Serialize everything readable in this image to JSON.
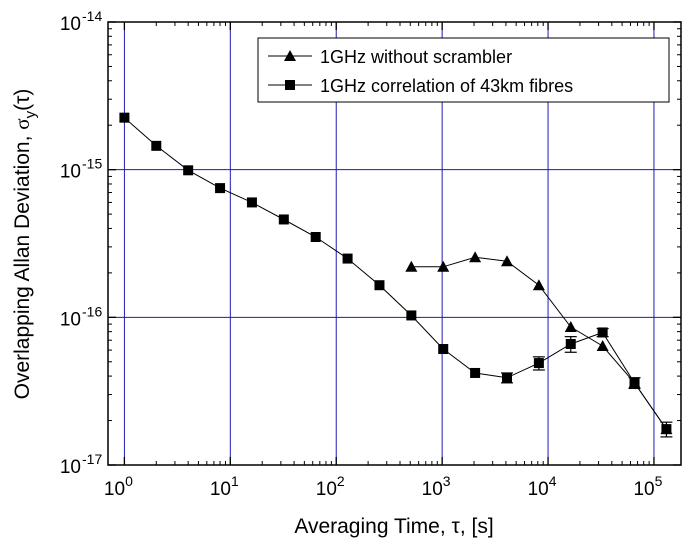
{
  "chart_data": {
    "type": "scatter",
    "x_scale": "log",
    "y_scale": "log",
    "xlim": [
      0.7,
      180000
    ],
    "ylim": [
      1e-17,
      1e-14
    ],
    "grid": true,
    "legend_placement": "top-right",
    "xlabel": "Averaging Time, τ, [s]",
    "ylabel_parts": {
      "main": "Overlapping Allan Deviation, ",
      "sigma": "σ",
      "sub": "y",
      "arg": "(τ)"
    },
    "x_ticks": [
      {
        "value": 1,
        "exponent": "0"
      },
      {
        "value": 10,
        "exponent": "1"
      },
      {
        "value": 100,
        "exponent": "2"
      },
      {
        "value": 1000,
        "exponent": "3"
      },
      {
        "value": 10000,
        "exponent": "4"
      },
      {
        "value": 100000,
        "exponent": "5"
      }
    ],
    "y_ticks": [
      {
        "value": 1e-17,
        "exponent": "-17"
      },
      {
        "value": 1e-16,
        "exponent": "-16"
      },
      {
        "value": 1e-15,
        "exponent": "-15"
      },
      {
        "value": 1e-14,
        "exponent": "-14"
      }
    ],
    "tick_base": "10",
    "series": [
      {
        "name": "1GHz without scrambler",
        "marker": "triangle",
        "color": "#000000",
        "points": [
          {
            "x": 512,
            "y": 2.2e-16
          },
          {
            "x": 1024,
            "y": 2.2e-16
          },
          {
            "x": 2048,
            "y": 2.55e-16
          },
          {
            "x": 4096,
            "y": 2.4e-16
          },
          {
            "x": 8192,
            "y": 1.65e-16
          },
          {
            "x": 16384,
            "y": 8.6e-17
          },
          {
            "x": 32768,
            "y": 6.4e-17
          },
          {
            "x": 65536,
            "y": 3.6e-17
          },
          {
            "x": 131072,
            "y": 1.75e-17
          }
        ]
      },
      {
        "name": "1GHz correlation of 43km fibres",
        "marker": "square",
        "color": "#000000",
        "points": [
          {
            "x": 1,
            "y": 2.25e-15
          },
          {
            "x": 2,
            "y": 1.45e-15
          },
          {
            "x": 4,
            "y": 9.9e-16
          },
          {
            "x": 8,
            "y": 7.5e-16
          },
          {
            "x": 16,
            "y": 6e-16
          },
          {
            "x": 32,
            "y": 4.6e-16
          },
          {
            "x": 64,
            "y": 3.5e-16
          },
          {
            "x": 128,
            "y": 2.5e-16
          },
          {
            "x": 256,
            "y": 1.65e-16
          },
          {
            "x": 512,
            "y": 1.03e-16
          },
          {
            "x": 1024,
            "y": 6.1e-17
          },
          {
            "x": 2048,
            "y": 4.2e-17
          },
          {
            "x": 4096,
            "y": 3.9e-17,
            "err": 3e-18
          },
          {
            "x": 8192,
            "y": 4.9e-17,
            "err": 5e-18
          },
          {
            "x": 16384,
            "y": 6.6e-17,
            "err": 8e-18
          },
          {
            "x": 32768,
            "y": 7.9e-17,
            "err": 5e-18
          },
          {
            "x": 65536,
            "y": 3.6e-17,
            "err": 3e-18
          },
          {
            "x": 131072,
            "y": 1.75e-17,
            "err": 2e-18
          }
        ]
      }
    ],
    "colors": {
      "grid": "#1c1cb4",
      "axis": "#000000",
      "series": "#000000"
    }
  }
}
